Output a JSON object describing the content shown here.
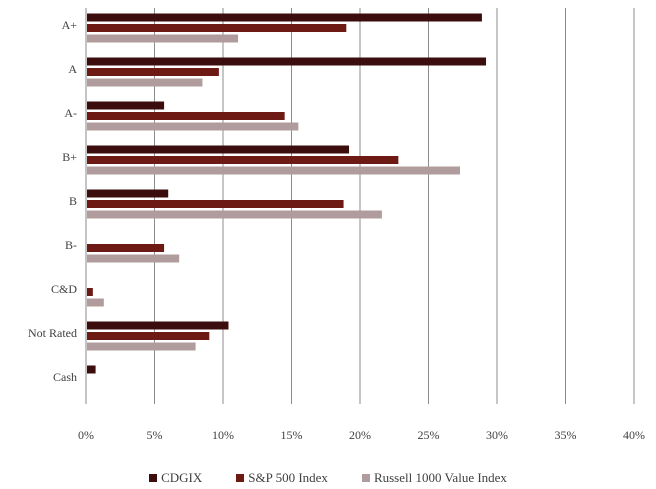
{
  "chart_data": {
    "type": "bar",
    "orientation": "horizontal",
    "categories": [
      "A+",
      "A",
      "A-",
      "B+",
      "B",
      "B-",
      "C&D",
      "Not Rated",
      "Cash"
    ],
    "x_ticks": [
      "0%",
      "5%",
      "10%",
      "15%",
      "20%",
      "25%",
      "30%",
      "35%",
      "40%"
    ],
    "xlim": [
      0,
      40
    ],
    "grid": "vertical",
    "legend_position": "bottom",
    "series": [
      {
        "name": "CDGIX",
        "color": "#3b0d0d",
        "values": [
          28.9,
          29.2,
          5.7,
          19.2,
          6.0,
          0,
          0,
          10.4,
          0.7
        ]
      },
      {
        "name": "S&P 500 Index",
        "color": "#6e1a14",
        "values": [
          19.0,
          9.7,
          14.5,
          22.8,
          18.8,
          5.7,
          0.5,
          9.0,
          0
        ]
      },
      {
        "name": "Russell 1000 Value Index",
        "color": "#b09c9c",
        "values": [
          11.1,
          8.5,
          15.5,
          27.3,
          21.6,
          6.8,
          1.3,
          8.0,
          0
        ]
      }
    ]
  }
}
